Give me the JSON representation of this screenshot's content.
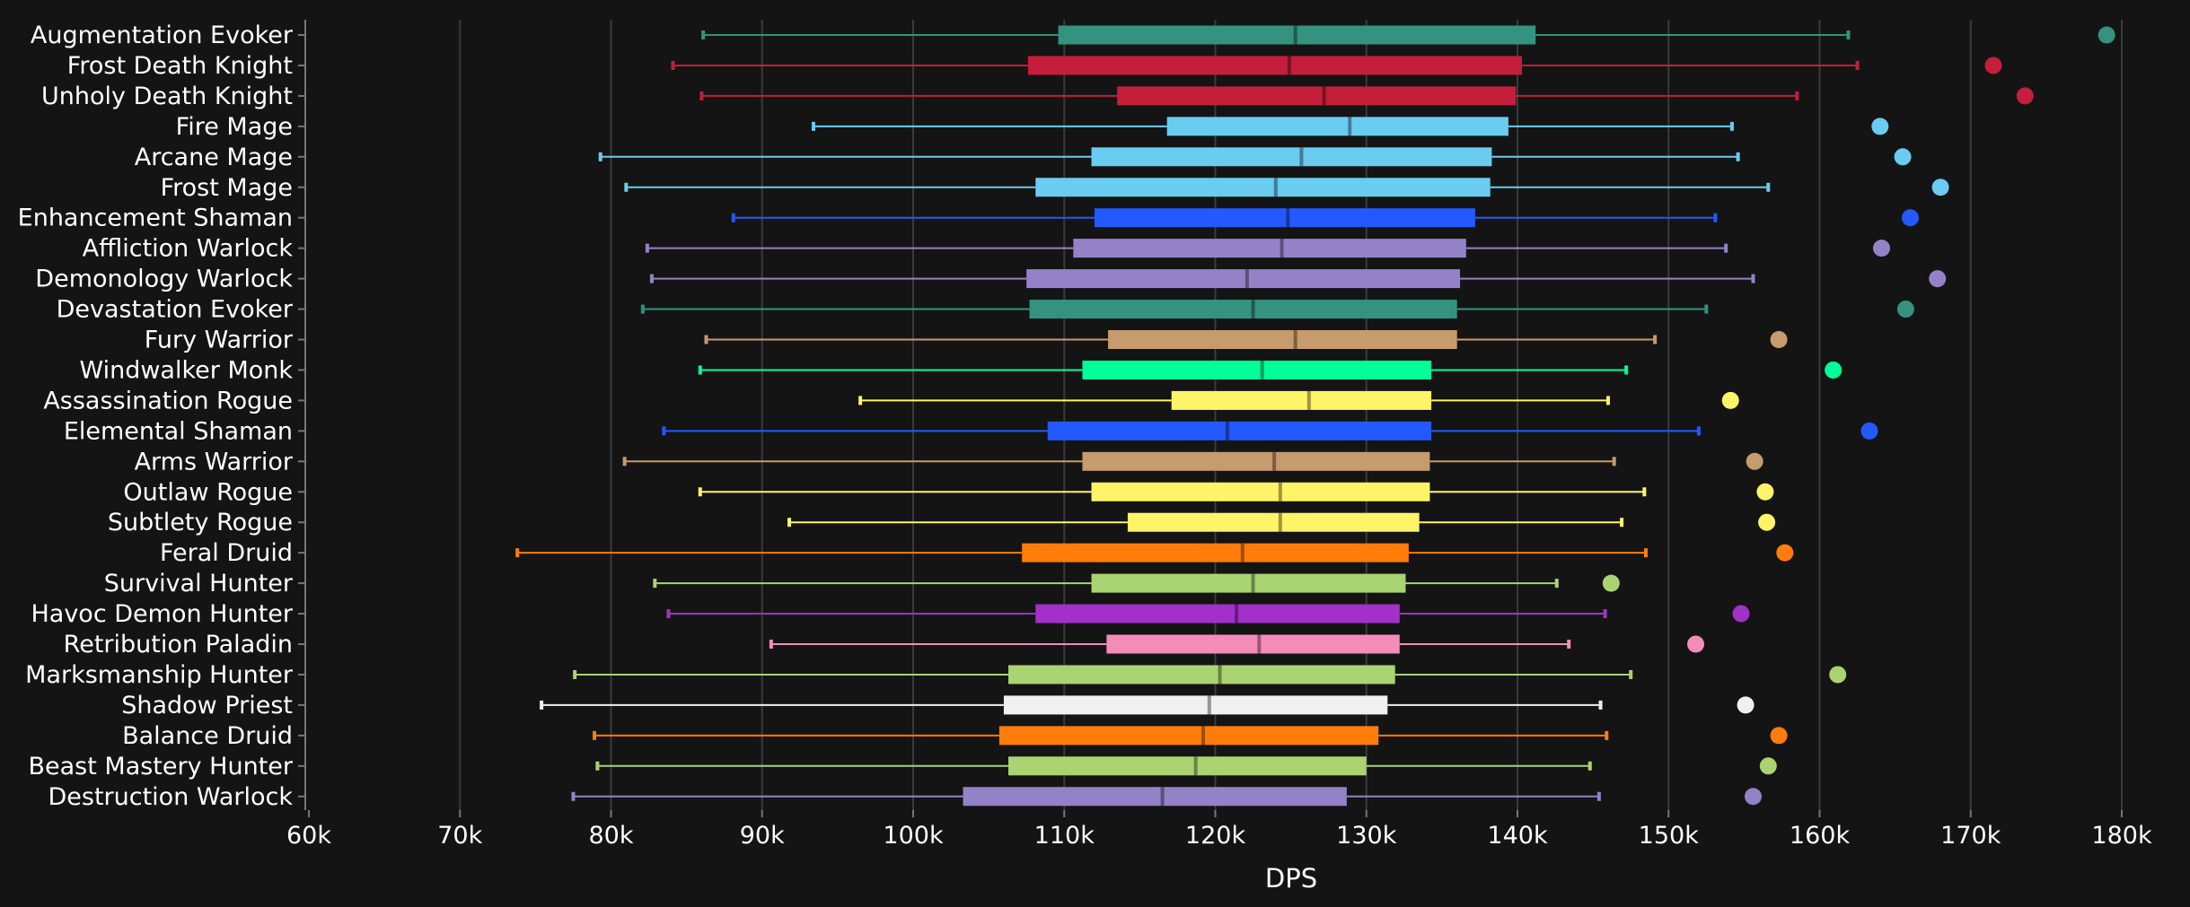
{
  "chart_data": {
    "type": "boxplot",
    "title": "",
    "xlabel": "DPS",
    "ylabel": "",
    "xlim": [
      60000,
      180000
    ],
    "xticks": [
      60000,
      70000,
      80000,
      90000,
      100000,
      110000,
      120000,
      130000,
      140000,
      150000,
      160000,
      170000,
      180000
    ],
    "xtick_labels": [
      "60k",
      "70k",
      "80k",
      "90k",
      "100k",
      "110k",
      "120k",
      "130k",
      "140k",
      "150k",
      "160k",
      "170k",
      "180k"
    ],
    "grid": true,
    "orientation": "horizontal",
    "series": [
      {
        "name": "Augmentation Evoker",
        "color": "#33937f",
        "min": 86100,
        "q1": 109600,
        "median": 125300,
        "q3": 141200,
        "max": 161900,
        "outlier": 179000
      },
      {
        "name": "Frost Death Knight",
        "color": "#c41e3a",
        "min": 84100,
        "q1": 107600,
        "median": 124900,
        "q3": 140300,
        "max": 162500,
        "outlier": 171500
      },
      {
        "name": "Unholy Death Knight",
        "color": "#c41e3a",
        "min": 86000,
        "q1": 113500,
        "median": 127200,
        "q3": 139900,
        "max": 158500,
        "outlier": 173600
      },
      {
        "name": "Fire Mage",
        "color": "#69ccf0",
        "min": 93400,
        "q1": 116800,
        "median": 128900,
        "q3": 139400,
        "max": 154200,
        "outlier": 164000
      },
      {
        "name": "Arcane Mage",
        "color": "#69ccf0",
        "min": 79300,
        "q1": 111800,
        "median": 125700,
        "q3": 138300,
        "max": 154600,
        "outlier": 165500
      },
      {
        "name": "Frost Mage",
        "color": "#69ccf0",
        "min": 81000,
        "q1": 108100,
        "median": 124000,
        "q3": 138200,
        "max": 156600,
        "outlier": 168000
      },
      {
        "name": "Enhancement Shaman",
        "color": "#2359ff",
        "min": 88100,
        "q1": 112000,
        "median": 124800,
        "q3": 137200,
        "max": 153100,
        "outlier": 166000
      },
      {
        "name": "Affliction Warlock",
        "color": "#9482c9",
        "min": 82400,
        "q1": 110600,
        "median": 124400,
        "q3": 136600,
        "max": 153800,
        "outlier": 164100
      },
      {
        "name": "Demonology Warlock",
        "color": "#9482c9",
        "min": 82700,
        "q1": 107500,
        "median": 122100,
        "q3": 136200,
        "max": 155600,
        "outlier": 167800
      },
      {
        "name": "Devastation Evoker",
        "color": "#33937f",
        "min": 82100,
        "q1": 107700,
        "median": 122500,
        "q3": 136000,
        "max": 152500,
        "outlier": 165700
      },
      {
        "name": "Fury Warrior",
        "color": "#c69b6d",
        "min": 86300,
        "q1": 112900,
        "median": 125300,
        "q3": 136000,
        "max": 149100,
        "outlier": 157300
      },
      {
        "name": "Windwalker Monk",
        "color": "#00ff98",
        "min": 85900,
        "q1": 111200,
        "median": 123100,
        "q3": 134300,
        "max": 147200,
        "outlier": 160900
      },
      {
        "name": "Assassination Rogue",
        "color": "#fff468",
        "min": 96500,
        "q1": 117100,
        "median": 126200,
        "q3": 134300,
        "max": 146000,
        "outlier": 154100
      },
      {
        "name": "Elemental Shaman",
        "color": "#2359ff",
        "min": 83500,
        "q1": 108900,
        "median": 120800,
        "q3": 134300,
        "max": 152000,
        "outlier": 163300
      },
      {
        "name": "Arms Warrior",
        "color": "#c69b6d",
        "min": 80900,
        "q1": 111200,
        "median": 123900,
        "q3": 134200,
        "max": 146400,
        "outlier": 155700
      },
      {
        "name": "Outlaw Rogue",
        "color": "#fff468",
        "min": 85900,
        "q1": 111800,
        "median": 124300,
        "q3": 134200,
        "max": 148400,
        "outlier": 156400
      },
      {
        "name": "Subtlety Rogue",
        "color": "#fff468",
        "min": 91800,
        "q1": 114200,
        "median": 124300,
        "q3": 133500,
        "max": 146900,
        "outlier": 156500
      },
      {
        "name": "Feral Druid",
        "color": "#ff7c0a",
        "min": 73800,
        "q1": 107200,
        "median": 121800,
        "q3": 132800,
        "max": 148500,
        "outlier": 157700
      },
      {
        "name": "Survival Hunter",
        "color": "#aad372",
        "min": 82900,
        "q1": 111800,
        "median": 122500,
        "q3": 132600,
        "max": 142600,
        "outlier": 146200
      },
      {
        "name": "Havoc Demon Hunter",
        "color": "#a330c9",
        "min": 83800,
        "q1": 108100,
        "median": 121400,
        "q3": 132200,
        "max": 145800,
        "outlier": 154800
      },
      {
        "name": "Retribution Paladin",
        "color": "#f48cba",
        "min": 90600,
        "q1": 112800,
        "median": 122900,
        "q3": 132200,
        "max": 143400,
        "outlier": 151800
      },
      {
        "name": "Marksmanship Hunter",
        "color": "#aad372",
        "min": 77600,
        "q1": 106300,
        "median": 120300,
        "q3": 131900,
        "max": 147500,
        "outlier": 161200
      },
      {
        "name": "Shadow Priest",
        "color": "#f0f0f0",
        "min": 75400,
        "q1": 106000,
        "median": 119600,
        "q3": 131400,
        "max": 145500,
        "outlier": 155100
      },
      {
        "name": "Balance Druid",
        "color": "#ff7c0a",
        "min": 78900,
        "q1": 105700,
        "median": 119200,
        "q3": 130800,
        "max": 145900,
        "outlier": 157300
      },
      {
        "name": "Beast Mastery Hunter",
        "color": "#aad372",
        "min": 79100,
        "q1": 106300,
        "median": 118700,
        "q3": 130000,
        "max": 144800,
        "outlier": 156600
      },
      {
        "name": "Destruction Warlock",
        "color": "#9482c9",
        "min": 77500,
        "q1": 103300,
        "median": 116500,
        "q3": 128700,
        "max": 145400,
        "outlier": 155600
      }
    ]
  }
}
